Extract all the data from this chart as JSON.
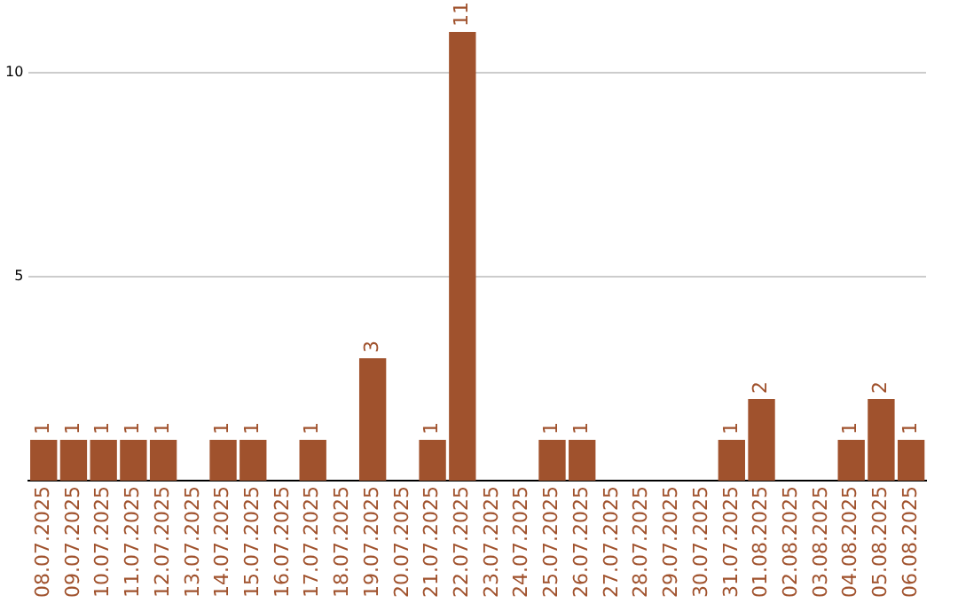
{
  "chart_data": {
    "type": "bar",
    "categories": [
      "08.07.2025",
      "09.07.2025",
      "10.07.2025",
      "11.07.2025",
      "12.07.2025",
      "13.07.2025",
      "14.07.2025",
      "15.07.2025",
      "16.07.2025",
      "17.07.2025",
      "18.07.2025",
      "19.07.2025",
      "20.07.2025",
      "21.07.2025",
      "22.07.2025",
      "23.07.2025",
      "24.07.2025",
      "25.07.2025",
      "26.07.2025",
      "27.07.2025",
      "28.07.2025",
      "29.07.2025",
      "30.07.2025",
      "31.07.2025",
      "01.08.2025",
      "02.08.2025",
      "03.08.2025",
      "04.08.2025",
      "05.08.2025",
      "06.08.2025"
    ],
    "values": [
      1,
      1,
      1,
      1,
      1,
      0,
      1,
      1,
      0,
      1,
      0,
      3,
      0,
      1,
      11,
      0,
      0,
      1,
      1,
      0,
      0,
      0,
      0,
      1,
      2,
      0,
      0,
      1,
      2,
      1
    ],
    "value_labels": [
      "1",
      "1",
      "1",
      "1",
      "1",
      null,
      "1",
      "1",
      null,
      "1",
      null,
      "3",
      null,
      "1",
      "11",
      null,
      null,
      "1",
      "1",
      null,
      null,
      null,
      null,
      "1",
      "2",
      null,
      null,
      "1",
      "2",
      "1"
    ],
    "color": "#a0522d",
    "ylim": [
      0,
      11
    ],
    "yticks": [
      5,
      10
    ],
    "grid": "y",
    "legend": false
  }
}
